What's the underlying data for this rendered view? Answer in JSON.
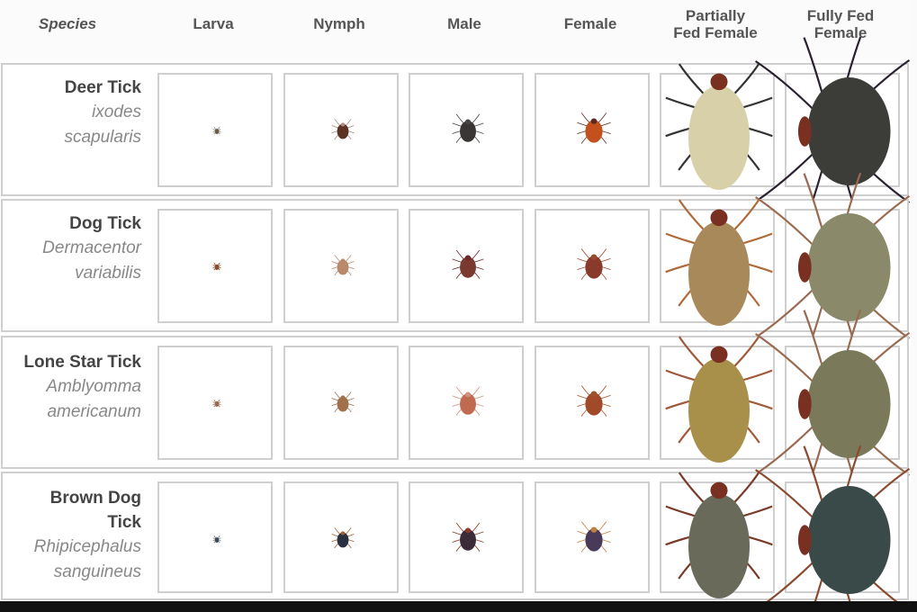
{
  "header": {
    "species": "Species",
    "stages": [
      "Larva",
      "Nymph",
      "Male",
      "Female",
      "Partially Fed Female",
      "Fully Fed Female"
    ],
    "stages_lines": [
      [
        "Larva"
      ],
      [
        "Nymph"
      ],
      [
        "Male"
      ],
      [
        "Female"
      ],
      [
        "Partially",
        "Fed Female"
      ],
      [
        "Fully Fed",
        "Female"
      ]
    ]
  },
  "rows": [
    {
      "common": "Deer Tick",
      "scientific": [
        "ixodes",
        "scapularis"
      ],
      "colors": [
        [
          "#6b5a40",
          "#888"
        ],
        [
          "#5a3325",
          "#b08a80"
        ],
        [
          "#3a3535",
          "#444"
        ],
        [
          "#c4501e",
          "#5a2a20"
        ],
        [
          "#d8d0a8",
          "#333"
        ],
        [
          "#3c3c38",
          "#2a2030"
        ]
      ]
    },
    {
      "common": "Dog Tick",
      "scientific": [
        "Dermacentor",
        "variabilis"
      ],
      "colors": [
        [
          "#8a4a2a",
          "#8a4a2a"
        ],
        [
          "#b88a6a",
          "#b88a6a"
        ],
        [
          "#7a3a30",
          "#6a2a2a"
        ],
        [
          "#8a3a2a",
          "#9a4a30"
        ],
        [
          "#a88a5a",
          "#b06a3a"
        ],
        [
          "#8a8a6a",
          "#9a6a50"
        ]
      ]
    },
    {
      "common": "Lone Star Tick",
      "scientific": [
        "Amblyomma",
        "americanum"
      ],
      "colors": [
        [
          "#9a6a4a",
          "#a07060"
        ],
        [
          "#a0704a",
          "#a07050"
        ],
        [
          "#c06a50",
          "#d09080"
        ],
        [
          "#a04a2a",
          "#a0502a"
        ],
        [
          "#a8904a",
          "#a05a3a"
        ],
        [
          "#7a7a5a",
          "#9a6a50"
        ]
      ]
    },
    {
      "common": "Brown Dog Tick",
      "scientific": [
        "Rhipicephalus",
        "sanguineus"
      ],
      "colors": [
        [
          "#3a4a5a",
          "#777"
        ],
        [
          "#2a3040",
          "#a06030"
        ],
        [
          "#3a2a3a",
          "#8a3a2a"
        ],
        [
          "#4a3a5a",
          "#c08040"
        ],
        [
          "#6a6a5a",
          "#7a3a2a"
        ],
        [
          "#3a4a48",
          "#8a4a30"
        ]
      ]
    }
  ]
}
